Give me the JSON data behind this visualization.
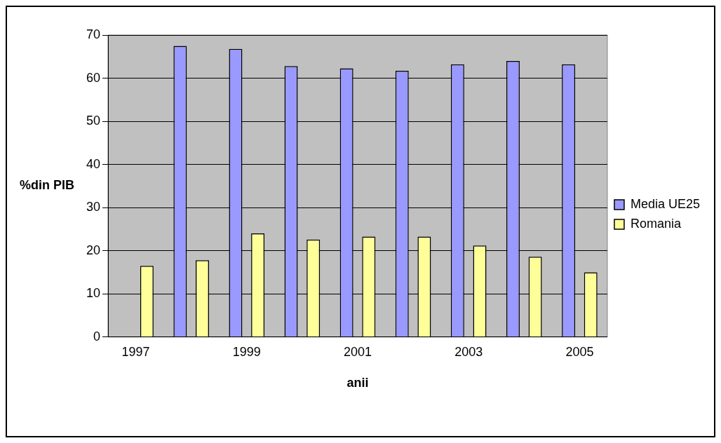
{
  "chart_data": {
    "type": "bar",
    "xlabel": "anii",
    "ylabel": "%din PIB",
    "categories": [
      "1997",
      null,
      "1999",
      null,
      "2001",
      null,
      "2003",
      null,
      "2005"
    ],
    "series": [
      {
        "name": "Media UE25",
        "color": "#9999ff",
        "values": [
          null,
          67.5,
          66.8,
          62.8,
          62.3,
          61.7,
          63.2,
          64,
          63.2
        ]
      },
      {
        "name": "Romania",
        "color": "#ffff99",
        "values": [
          16.5,
          17.8,
          24,
          22.6,
          23.3,
          23.3,
          21.2,
          18.6,
          15
        ]
      }
    ],
    "ylim": [
      0,
      70
    ],
    "yticks": [
      0,
      10,
      20,
      30,
      40,
      50,
      60,
      70
    ],
    "grid": "y",
    "legend": "right"
  }
}
